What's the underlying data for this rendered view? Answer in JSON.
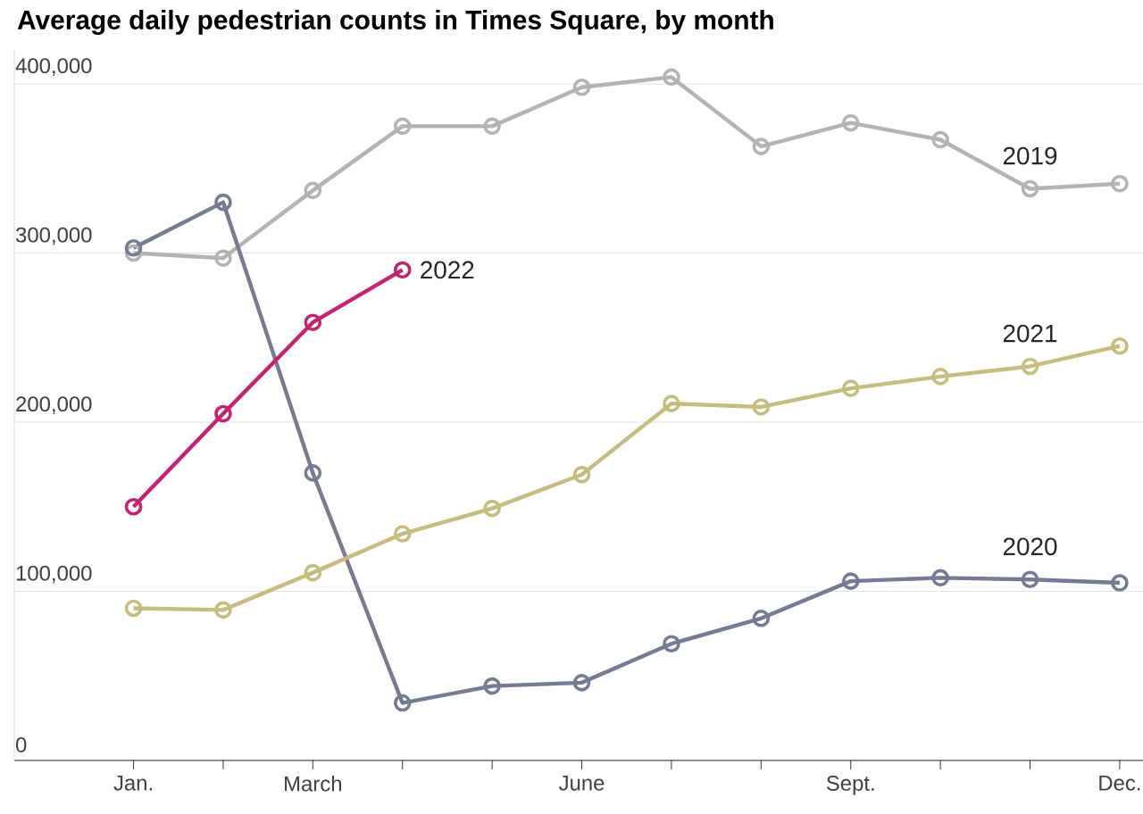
{
  "chart_data": {
    "type": "line",
    "title": "Average daily pedestrian counts in Times Square, by month",
    "categories": [
      "Jan.",
      null,
      "March",
      null,
      null,
      "June",
      null,
      null,
      "Sept.",
      null,
      null,
      "Dec."
    ],
    "series": [
      {
        "name": "2019",
        "color": "#b3b3b3",
        "values": [
          300000,
          297000,
          337000,
          375000,
          375000,
          398000,
          404000,
          363000,
          377000,
          367000,
          338000,
          341000
        ]
      },
      {
        "name": "2020",
        "color": "#767b93",
        "values": [
          303000,
          330000,
          170000,
          34000,
          44000,
          46000,
          69000,
          84000,
          106000,
          108000,
          107000,
          105000
        ]
      },
      {
        "name": "2021",
        "color": "#c5bd7f",
        "values": [
          90000,
          89000,
          111000,
          134000,
          149000,
          169000,
          211000,
          209000,
          220000,
          227000,
          233000,
          245000
        ]
      },
      {
        "name": "2022",
        "color": "#c3236f",
        "values": [
          150000,
          205000,
          259000,
          290000,
          null,
          null,
          null,
          null,
          null,
          null,
          null,
          null
        ]
      }
    ],
    "ylim": [
      0,
      420000
    ],
    "yticks": [
      {
        "value": 0,
        "label": "0"
      },
      {
        "value": 100000,
        "label": "100,000"
      },
      {
        "value": 200000,
        "label": "200,000"
      },
      {
        "value": 300000,
        "label": "300,000"
      },
      {
        "value": 400000,
        "label": "400,000"
      }
    ],
    "grid": "y",
    "legend": false,
    "marker": "circle",
    "line_style": "solid"
  }
}
